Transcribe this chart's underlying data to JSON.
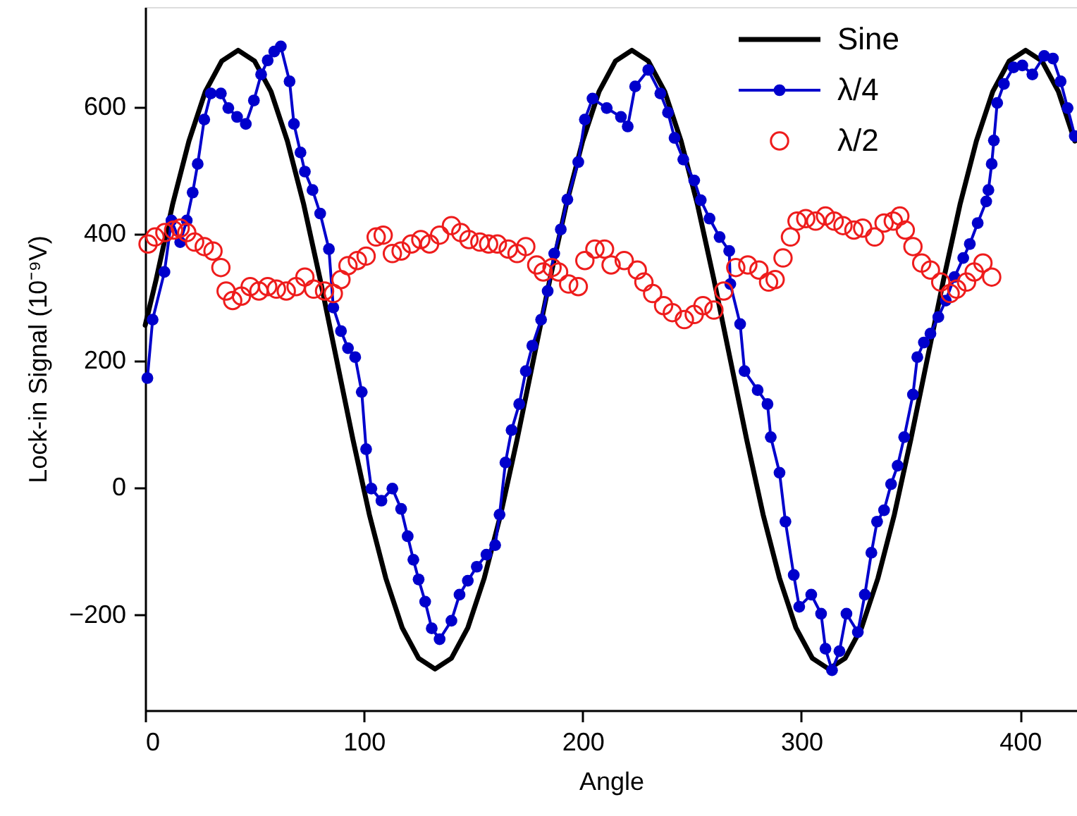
{
  "chart_data": {
    "type": "line",
    "xlabel": "Angle",
    "ylabel": "Lock-in Signal (10⁻⁹V)",
    "xlim": [
      0,
      426
    ],
    "ylim": [
      -350,
      757
    ],
    "xticks": [
      0,
      100,
      200,
      300,
      400
    ],
    "yticks": [
      -200,
      0,
      200,
      400,
      600
    ],
    "grid": false,
    "legend": "top right",
    "series": [
      {
        "name": "Sine",
        "color": "#000000",
        "marker": "none",
        "x": [
          0,
          5,
          12.5,
          20,
          27.5,
          35,
          42.5,
          50,
          57.5,
          65,
          72.5,
          80,
          87.5,
          95,
          102.5,
          110,
          117.5,
          125,
          132.5,
          140,
          147.5,
          155,
          162.5,
          170,
          177.5,
          185,
          192.5,
          200,
          207.5,
          215,
          222.5,
          230,
          237.5,
          245,
          252.5,
          260,
          267.5,
          275,
          282.5,
          290,
          297.5,
          305,
          312.5,
          320,
          327.5,
          335,
          342.5,
          350,
          357.5,
          365,
          372.5,
          380,
          387.5,
          395,
          402.5,
          410,
          417.5,
          425
        ],
        "values": [
          256,
          328,
          446,
          546,
          624,
          672,
          689,
          672,
          624,
          546,
          446,
          328,
          202,
          76,
          -42,
          -142,
          -220,
          -268,
          -285,
          -268,
          -220,
          -142,
          -42,
          76,
          202,
          328,
          446,
          546,
          624,
          672,
          689,
          672,
          624,
          546,
          446,
          328,
          202,
          76,
          -42,
          -142,
          -220,
          -268,
          -285,
          -268,
          -220,
          -142,
          -42,
          76,
          202,
          328,
          446,
          546,
          624,
          672,
          689,
          672,
          624,
          546
        ]
      },
      {
        "name": "λ/4",
        "color": "#0000cc",
        "marker": "circle",
        "x": [
          1,
          3.4,
          8.8,
          12,
          16,
          19,
          21.7,
          24,
          27,
          30,
          34.6,
          38,
          42,
          46,
          49.7,
          53,
          56,
          59,
          62,
          66,
          68,
          71,
          73,
          76.5,
          80,
          84,
          86,
          89.5,
          92.7,
          96,
          99,
          101,
          103.4,
          108,
          113,
          117,
          120,
          122.6,
          125,
          128,
          131,
          134.6,
          140,
          143.7,
          147.5,
          151.6,
          156,
          160,
          162,
          164.7,
          167.5,
          171,
          174,
          177,
          181,
          184,
          187,
          190,
          193,
          198,
          201,
          204.5,
          211,
          217.5,
          220.6,
          224,
          230,
          235.5,
          239,
          242,
          246,
          251,
          254,
          258,
          262.6,
          267,
          267.5,
          272,
          274,
          280,
          284.5,
          286,
          290,
          292.7,
          296.5,
          299,
          304.5,
          309,
          311,
          314,
          317.4,
          320.6,
          325.8,
          329,
          332,
          334.6,
          337.8,
          341,
          344,
          347,
          351,
          353,
          356,
          359,
          362.6,
          366,
          370,
          374,
          377,
          380.6,
          384.5,
          385.5,
          387,
          388,
          389.5,
          392.6,
          397,
          401,
          405.6,
          411,
          415,
          418.5,
          421.7,
          425
        ],
        "values": [
          173,
          265,
          340,
          421,
          387,
          421,
          465,
          510,
          580,
          621,
          621,
          598,
          584,
          573,
          610,
          651,
          673,
          687,
          695,
          640,
          573,
          528,
          498,
          469,
          432,
          376,
          284,
          247,
          220,
          206,
          151,
          61,
          -1,
          -20,
          -1,
          -33,
          -76,
          -113,
          -144,
          -179,
          -221,
          -238,
          -209,
          -168,
          -146,
          -124,
          -105,
          -90,
          -42,
          40,
          91,
          132,
          184,
          224,
          265,
          310,
          369,
          407,
          454,
          513,
          580,
          613,
          598,
          584,
          569,
          632,
          658,
          621,
          591,
          551,
          517,
          484,
          453,
          424,
          395,
          373,
          321,
          258,
          184,
          154,
          132,
          80,
          24,
          -53,
          -137,
          -187,
          -168,
          -198,
          -253,
          -287,
          -257,
          -198,
          -227,
          -168,
          -102,
          -53,
          -35,
          6,
          35,
          80,
          147,
          206,
          229,
          243,
          269,
          295,
          332,
          362,
          384,
          417,
          451,
          469,
          510,
          547,
          606,
          636,
          662,
          665,
          651,
          680,
          676,
          640,
          598,
          554
        ]
      },
      {
        "name": "λ/2",
        "color": "#ee1c1c",
        "type": "scatter",
        "marker": "circle",
        "x": [
          1.3,
          4.5,
          9,
          13,
          16,
          19,
          22.6,
          27,
          31,
          34.6,
          37,
          40,
          44,
          48,
          52,
          56,
          60,
          64.5,
          69,
          73,
          77,
          82,
          86,
          89.5,
          92.7,
          97,
          101,
          105.6,
          108.8,
          113,
          117,
          121.7,
          126,
          130,
          134.6,
          140,
          144.3,
          148,
          153,
          157,
          161,
          166,
          170,
          174,
          179,
          182,
          186,
          189,
          193.6,
          198,
          201,
          205.6,
          210,
          213,
          219,
          225,
          228,
          232,
          237,
          241,
          246.5,
          251,
          255,
          260,
          264.5,
          270,
          275.5,
          280.6,
          285,
          288,
          291.6,
          295,
          298,
          302,
          306.5,
          311,
          315,
          319,
          324,
          328,
          333.5,
          337.8,
          342,
          345,
          347.5,
          351,
          355,
          359,
          363.7,
          368,
          371,
          375.5,
          379,
          383,
          387
        ],
        "values": [
          384,
          395,
          402,
          406,
          409,
          402,
          387,
          380,
          373,
          347,
          310,
          295,
          302,
          317,
          310,
          317,
          313,
          310,
          317,
          332,
          313,
          310,
          306,
          328,
          350,
          358,
          365,
          395,
          398,
          369,
          373,
          384,
          391,
          384,
          398,
          413,
          402,
          391,
          387,
          384,
          384,
          376,
          369,
          380,
          351,
          340,
          347,
          340,
          321,
          317,
          358,
          376,
          376,
          351,
          358,
          343,
          324,
          306,
          287,
          276,
          265,
          273,
          287,
          280,
          310,
          347,
          351,
          343,
          324,
          328,
          362,
          395,
          420,
          424,
          420,
          428,
          420,
          413,
          406,
          409,
          395,
          417,
          420,
          428,
          406,
          380,
          354,
          343,
          324,
          306,
          313,
          324,
          340,
          354,
          332
        ]
      }
    ]
  }
}
